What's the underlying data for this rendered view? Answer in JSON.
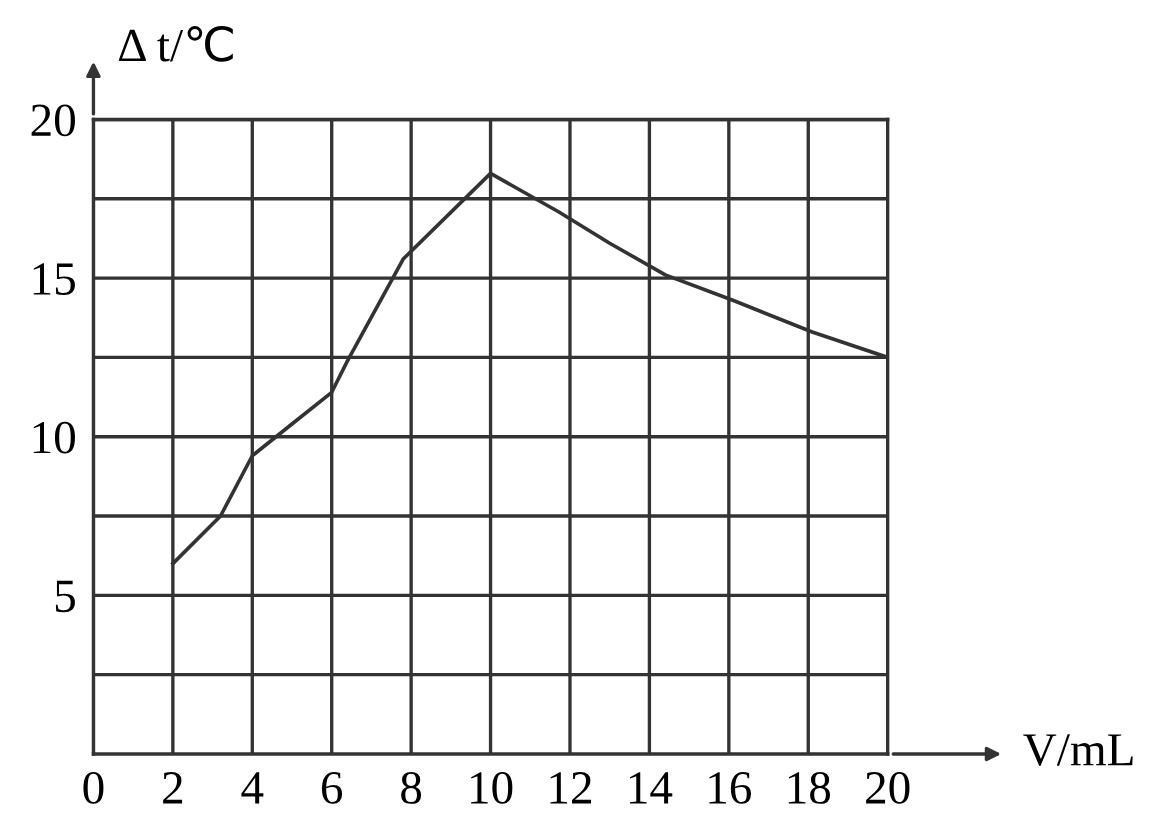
{
  "chart_data": {
    "type": "line",
    "xlabel": "V/mL",
    "ylabel": "Δ t/℃",
    "x": [
      2,
      3.2,
      4,
      5,
      6,
      6.4,
      7.8,
      10,
      11.7,
      13,
      14.4,
      16.1,
      18.1,
      20
    ],
    "series": [
      {
        "color": "#333333",
        "values": [
          6,
          7.5,
          9.4,
          10.4,
          11.4,
          12.4,
          15.6,
          18.3,
          17.1,
          16.1,
          15.1,
          14.3,
          13.3,
          12.5
        ]
      }
    ],
    "xlim": [
      0,
      20
    ],
    "ylim": [
      0,
      20
    ],
    "xticks": [
      0,
      2,
      4,
      6,
      8,
      10,
      12,
      14,
      16,
      18,
      20
    ],
    "yticks": [
      {
        "value": 2.5,
        "label": null
      },
      5,
      {
        "value": 7.5,
        "label": null
      },
      10,
      {
        "value": 12.5,
        "label": null
      },
      15,
      {
        "value": 17.5,
        "label": null
      },
      20
    ],
    "grid": true
  }
}
